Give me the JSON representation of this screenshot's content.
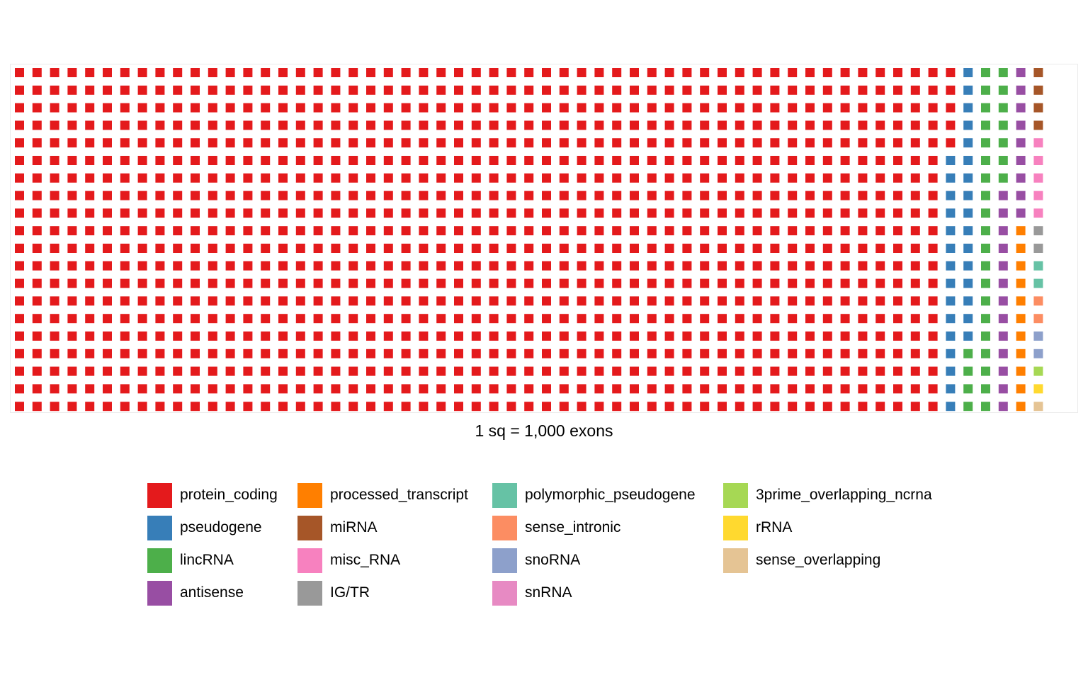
{
  "chart_data": {
    "type": "waffle",
    "title": "",
    "xlabel": "1 sq = 1,000 exons",
    "ylabel": "",
    "rows": 20,
    "unit": 1000,
    "categories": [
      {
        "name": "protein_coding",
        "color": "#E41A1C",
        "squares": 1065
      },
      {
        "name": "pseudogene",
        "color": "#377EB8",
        "squares": 31
      },
      {
        "name": "lincRNA",
        "color": "#4DAF4A",
        "squares": 31
      },
      {
        "name": "antisense",
        "color": "#984EA3",
        "squares": 22
      },
      {
        "name": "processed_transcript",
        "color": "#FF7F00",
        "squares": 11
      },
      {
        "name": "miRNA",
        "color": "#A65628",
        "squares": 4
      },
      {
        "name": "misc_RNA",
        "color": "#F781BF",
        "squares": 5
      },
      {
        "name": "IG/TR",
        "color": "#999999",
        "squares": 2
      },
      {
        "name": "polymorphic_pseudogene",
        "color": "#66C2A5",
        "squares": 2
      },
      {
        "name": "sense_intronic",
        "color": "#FC8D62",
        "squares": 2
      },
      {
        "name": "snoRNA",
        "color": "#8DA0CB",
        "squares": 2
      },
      {
        "name": "snRNA",
        "color": "#E78AC3",
        "squares": 0
      },
      {
        "name": "3prime_overlapping_ncrna",
        "color": "#A6D854",
        "squares": 1
      },
      {
        "name": "rRNA",
        "color": "#FFD92F",
        "squares": 1
      },
      {
        "name": "sense_overlapping",
        "color": "#E5C494",
        "squares": 1
      }
    ],
    "legend_position": "bottom",
    "grid": false
  }
}
